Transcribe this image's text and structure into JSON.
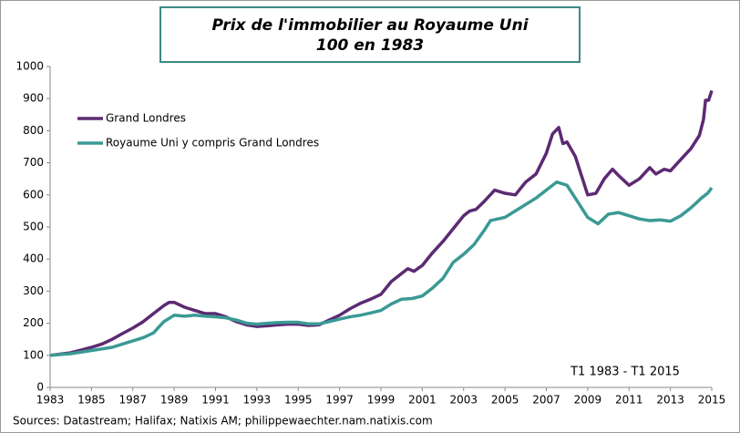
{
  "chart_data": {
    "type": "line",
    "title": "Prix de l'immobilier au Royaume Uni",
    "subtitle": "100 en 1983",
    "annotation": "T1 1983 - T1 2015",
    "source": "Sources: Datastream;  Halifax;  Natixis AM; philippewaechter.nam.natixis.com",
    "legend": "upper left",
    "xlim": [
      1983,
      2015
    ],
    "xticks": [
      1983,
      1985,
      1987,
      1989,
      1991,
      1993,
      1995,
      1997,
      1999,
      2001,
      2003,
      2005,
      2007,
      2009,
      2011,
      2013,
      2015
    ],
    "ylim": [
      0,
      1000
    ],
    "yticks": [
      0,
      100,
      200,
      300,
      400,
      500,
      600,
      700,
      800,
      900,
      1000
    ],
    "series": [
      {
        "name": "Grand Londres",
        "color": "#5c2a73",
        "x": [
          1983,
          1984,
          1985,
          1985.5,
          1986,
          1986.5,
          1987,
          1987.5,
          1988,
          1988.5,
          1988.75,
          1989,
          1989.5,
          1990,
          1990.5,
          1991,
          1991.5,
          1992,
          1992.5,
          1993,
          1993.5,
          1994,
          1994.5,
          1995,
          1995.5,
          1996,
          1996.5,
          1997,
          1997.5,
          1998,
          1998.5,
          1999,
          1999.5,
          2000,
          2000.3,
          2000.6,
          2001,
          2001.5,
          2002,
          2002.5,
          2003,
          2003.3,
          2003.6,
          2004,
          2004.5,
          2005,
          2005.5,
          2006,
          2006.5,
          2007,
          2007.3,
          2007.6,
          2007.8,
          2008,
          2008.4,
          2008.8,
          2009,
          2009.4,
          2009.8,
          2010.2,
          2010.5,
          2011,
          2011.5,
          2012,
          2012.3,
          2012.7,
          2013,
          2013.5,
          2014,
          2014.4,
          2014.6,
          2014.7,
          2014.85,
          2015
        ],
        "values": [
          100,
          108,
          125,
          135,
          150,
          168,
          185,
          205,
          230,
          255,
          265,
          265,
          250,
          240,
          230,
          230,
          220,
          205,
          195,
          190,
          192,
          195,
          197,
          197,
          193,
          195,
          210,
          225,
          245,
          262,
          275,
          290,
          330,
          355,
          370,
          362,
          380,
          420,
          455,
          495,
          535,
          550,
          555,
          580,
          615,
          605,
          600,
          640,
          665,
          730,
          790,
          810,
          760,
          765,
          720,
          640,
          600,
          605,
          650,
          680,
          660,
          630,
          650,
          685,
          665,
          680,
          675,
          710,
          745,
          785,
          835,
          895,
          895,
          925
        ]
      },
      {
        "name": "Royaume Uni y compris Grand Londres",
        "color": "#3a9a95",
        "x": [
          1983,
          1984,
          1985,
          1986,
          1986.5,
          1987,
          1987.5,
          1988,
          1988.5,
          1989,
          1989.5,
          1990,
          1990.5,
          1991,
          1991.5,
          1992,
          1992.5,
          1993,
          1993.5,
          1994,
          1994.5,
          1995,
          1995.5,
          1996,
          1996.5,
          1997,
          1997.5,
          1998,
          1998.5,
          1999,
          1999.5,
          2000,
          2000.5,
          2001,
          2001.5,
          2002,
          2002.5,
          2003,
          2003.5,
          2004,
          2004.3,
          2005,
          2005.5,
          2006,
          2006.5,
          2007,
          2007.5,
          2008,
          2008.5,
          2009,
          2009.5,
          2010,
          2010.5,
          2011,
          2011.5,
          2012,
          2012.5,
          2013,
          2013.5,
          2014,
          2014.5,
          2014.8,
          2015
        ],
        "values": [
          100,
          105,
          115,
          125,
          135,
          145,
          155,
          170,
          205,
          225,
          222,
          225,
          222,
          220,
          217,
          210,
          200,
          197,
          200,
          202,
          203,
          203,
          198,
          198,
          205,
          213,
          220,
          225,
          232,
          240,
          260,
          275,
          277,
          285,
          310,
          340,
          390,
          415,
          445,
          490,
          520,
          530,
          550,
          570,
          590,
          615,
          640,
          630,
          580,
          530,
          510,
          540,
          545,
          535,
          525,
          520,
          522,
          518,
          535,
          560,
          590,
          605,
          622
        ]
      }
    ]
  }
}
